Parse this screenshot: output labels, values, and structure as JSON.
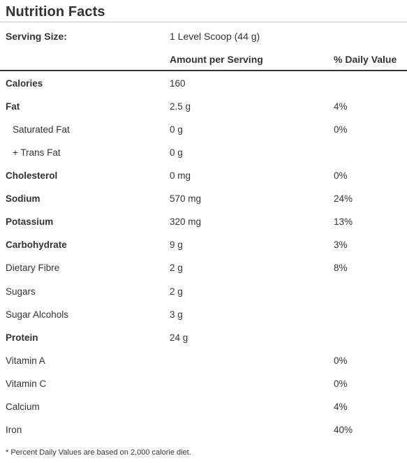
{
  "title": "Nutrition Facts",
  "serving": {
    "label": "Serving Size:",
    "value": "1 Level Scoop (44 g)"
  },
  "header": {
    "amount": "Amount per Serving",
    "daily_value": "% Daily Value"
  },
  "rows": [
    {
      "name": "Calories",
      "amount": "160",
      "dv": ""
    },
    {
      "name": "Fat",
      "amount": "2.5 g",
      "dv": "4%"
    },
    {
      "name": "Saturated Fat",
      "amount": "0 g",
      "dv": "0%"
    },
    {
      "name": "+ Trans Fat",
      "amount": "0 g",
      "dv": ""
    },
    {
      "name": "Cholesterol",
      "amount": "0 mg",
      "dv": "0%"
    },
    {
      "name": "Sodium",
      "amount": "570 mg",
      "dv": "24%"
    },
    {
      "name": "Potassium",
      "amount": "320 mg",
      "dv": "13%"
    },
    {
      "name": "Carbohydrate",
      "amount": "9 g",
      "dv": "3%"
    },
    {
      "name": "Dietary Fibre",
      "amount": "2 g",
      "dv": "8%"
    },
    {
      "name": "Sugars",
      "amount": "2 g",
      "dv": ""
    },
    {
      "name": "Sugar Alcohols",
      "amount": "3 g",
      "dv": ""
    },
    {
      "name": "Protein",
      "amount": "24 g",
      "dv": ""
    },
    {
      "name": "Vitamin A",
      "amount": "",
      "dv": "0%"
    },
    {
      "name": "Vitamin C",
      "amount": "",
      "dv": "0%"
    },
    {
      "name": "Calcium",
      "amount": "",
      "dv": "4%"
    },
    {
      "name": "Iron",
      "amount": "",
      "dv": "40%"
    }
  ],
  "footnote": "* Percent Daily Values are based on 2,000 calorie diet."
}
